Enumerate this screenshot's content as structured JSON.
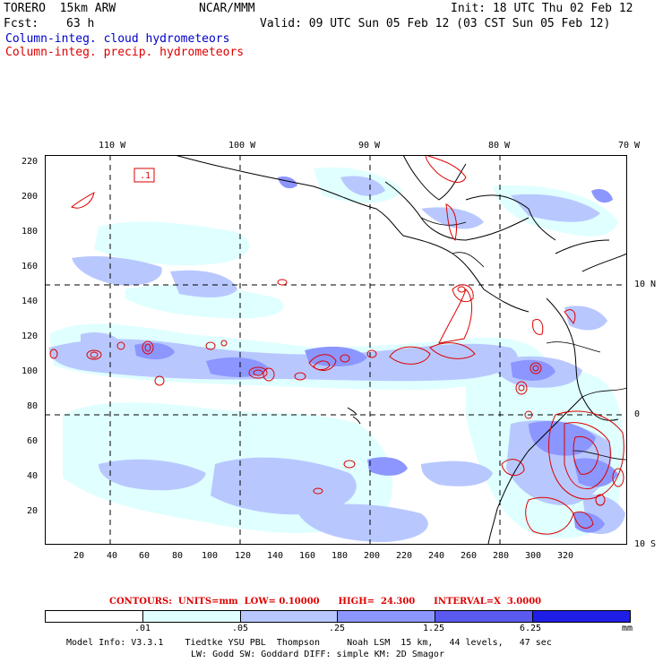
{
  "header": {
    "model": "TORERO  15km ARW",
    "org": "NCAR/MMM",
    "init": "Init: 18 UTC Thu 02 Feb 12",
    "fcst_label": "Fcst:",
    "fcst_value": "63 h",
    "valid": "Valid: 09 UTC Sun 05 Feb 12 (03 CST Sun 05 Feb 12)"
  },
  "legend": {
    "cloud": "Column-integ. cloud hydrometeors",
    "precip": "Column-integ. precip. hydrometeors"
  },
  "map": {
    "top_lon_labels": [
      "110 W",
      "100 W",
      "90 W",
      "80 W",
      "70 W"
    ],
    "right_lat_labels": [
      "10 N",
      "0",
      "10 S"
    ],
    "y_ticks": [
      "220",
      "200",
      "180",
      "160",
      "140",
      "120",
      "100",
      "80",
      "60",
      "40",
      "20"
    ],
    "x_ticks": [
      "20",
      "40",
      "60",
      "80",
      "100",
      "120",
      "140",
      "160",
      "180",
      "200",
      "220",
      "240",
      "260",
      "280",
      "300",
      "320"
    ],
    "box_label": ".1"
  },
  "contours": {
    "text": "CONTOURS:  UNITS=mm  LOW= 0.10000      HIGH=  24.300      INTERVAL=X  3.0000"
  },
  "colorbar": {
    "labels": [
      ".01",
      ".05",
      ".25",
      "1.25",
      "6.25"
    ],
    "unit": "mm",
    "colors": [
      "#ffffff",
      "#e0ffff",
      "#b8c8ff",
      "#8c96ff",
      "#5a5af0",
      "#1e1ee6"
    ]
  },
  "footer": {
    "line1": "Model Info: V3.3.1    Tiedtke YSU PBL  Thompson     Noah LSM  15 km,   44 levels,   47 sec",
    "line2": "LW: Godd SW: Goddard DIFF: simple KM: 2D Smagor"
  }
}
